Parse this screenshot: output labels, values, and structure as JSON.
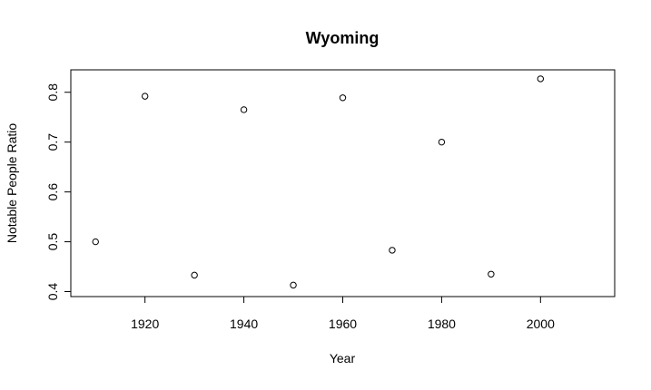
{
  "chart_data": {
    "type": "scatter",
    "title": "Wyoming",
    "xlabel": "Year",
    "ylabel": "Notable People Ratio",
    "xlim": [
      1905,
      2015
    ],
    "ylim": [
      0.39,
      0.845
    ],
    "x_ticks": [
      1920,
      1940,
      1960,
      1980,
      2000
    ],
    "y_ticks": [
      0.4,
      0.5,
      0.6,
      0.7,
      0.8
    ],
    "x_tick_labels": [
      "1920",
      "1940",
      "1960",
      "1980",
      "2000"
    ],
    "y_tick_labels": [
      "0.4",
      "0.5",
      "0.6",
      "0.7",
      "0.8"
    ],
    "points": [
      {
        "x": 1910,
        "y": 0.5
      },
      {
        "x": 1920,
        "y": 0.792
      },
      {
        "x": 1930,
        "y": 0.433
      },
      {
        "x": 1940,
        "y": 0.765
      },
      {
        "x": 1950,
        "y": 0.413
      },
      {
        "x": 1960,
        "y": 0.789
      },
      {
        "x": 1970,
        "y": 0.483
      },
      {
        "x": 1980,
        "y": 0.7
      },
      {
        "x": 1990,
        "y": 0.435
      },
      {
        "x": 2000,
        "y": 0.827
      }
    ],
    "grid": false,
    "legend": "none",
    "colors": {
      "point_stroke": "#000000",
      "axis": "#000000",
      "background": "#ffffff"
    }
  }
}
